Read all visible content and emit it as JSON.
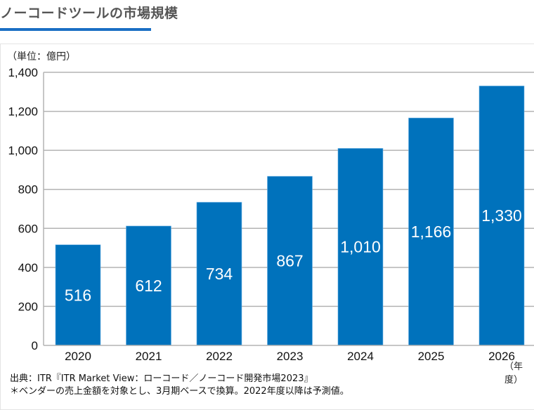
{
  "header": {
    "title": "ノーコードツールの市場規模"
  },
  "chart_data": {
    "type": "bar",
    "title": "ノーコードツールの市場規模",
    "ylabel": "（単位：億円）",
    "xlabel": "（年度）",
    "categories": [
      "2020",
      "2021",
      "2022",
      "2023",
      "2024",
      "2025",
      "2026"
    ],
    "values": [
      516,
      612,
      734,
      867,
      1010,
      1166,
      1330
    ],
    "value_labels": [
      "516",
      "612",
      "734",
      "867",
      "1,010",
      "1,166",
      "1,330"
    ],
    "yticks": [
      0,
      200,
      400,
      600,
      800,
      1000,
      1200,
      1400
    ],
    "ytick_labels": [
      "0",
      "200",
      "400",
      "600",
      "800",
      "1,000",
      "1,200",
      "1,400"
    ],
    "ylim": [
      0,
      1400
    ],
    "grid": true,
    "bar_color": "#0072bc"
  },
  "notes": {
    "source": "出典：ITR『ITR Market View：ローコード／ノーコード開発市場2023』",
    "footnote": "＊ベンダーの売上金額を対象とし、3月期ベースで換算。2022年度以降は予測値。"
  },
  "colors": {
    "accent": "#1a6fc4",
    "bar": "#0072bc",
    "grid": "#b3b3b3"
  }
}
